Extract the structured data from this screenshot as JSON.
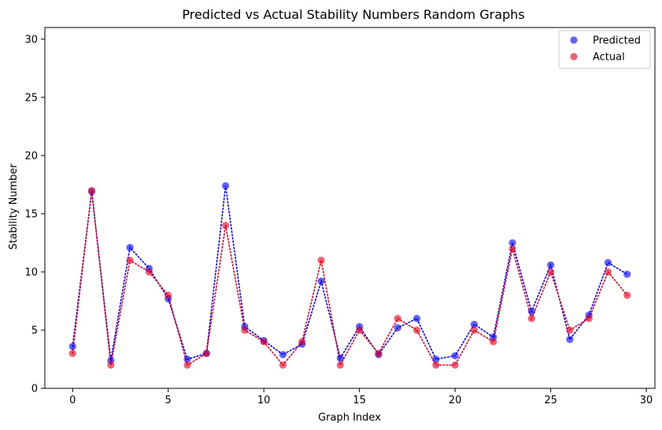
{
  "chart_data": {
    "type": "scatter",
    "title": "Predicted vs Actual Stability Numbers Random Graphs",
    "xlabel": "Graph Index",
    "ylabel": "Stability Number",
    "xlim": [
      -1.45,
      30.45
    ],
    "ylim": [
      0,
      31
    ],
    "xticks": [
      0,
      5,
      10,
      15,
      20,
      25,
      30
    ],
    "yticks": [
      0,
      5,
      10,
      15,
      20,
      25,
      30
    ],
    "x": [
      0,
      1,
      2,
      3,
      4,
      5,
      6,
      7,
      8,
      9,
      10,
      11,
      12,
      13,
      14,
      15,
      16,
      17,
      18,
      19,
      20,
      21,
      22,
      23,
      24,
      25,
      26,
      27,
      28,
      29
    ],
    "series": [
      {
        "name": "Predicted",
        "color": "#0000ff",
        "line_style": "dotted",
        "values": [
          3.6,
          16.9,
          2.4,
          12.1,
          10.3,
          7.7,
          2.5,
          3.0,
          17.4,
          5.3,
          4.1,
          2.9,
          3.8,
          9.2,
          2.6,
          5.3,
          2.9,
          5.2,
          6.0,
          2.5,
          2.8,
          5.5,
          4.4,
          12.5,
          6.6,
          10.6,
          4.2,
          6.3,
          10.8,
          9.8
        ]
      },
      {
        "name": "Actual",
        "color": "#e8001e",
        "line_style": "dotted",
        "values": [
          3,
          17,
          2,
          11,
          10,
          8,
          2,
          3,
          14,
          5,
          4,
          2,
          4,
          11,
          2,
          5,
          3,
          6,
          5,
          2,
          2,
          5,
          4,
          12,
          6,
          10,
          5,
          6,
          10,
          8
        ]
      }
    ],
    "legend_position": "top-right"
  }
}
